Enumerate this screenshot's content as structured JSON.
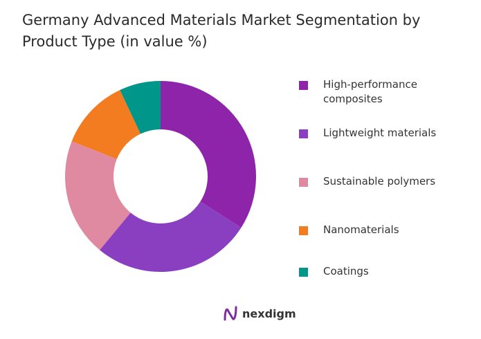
{
  "chart_data": {
    "type": "pie",
    "donut": true,
    "title": "Germany Advanced Materials Market Segmentation by Product Type (in value %)",
    "categories": [
      "High-performance composites",
      "Lightweight materials",
      "Sustainable polymers",
      "Nanomaterials",
      "Coatings"
    ],
    "values": [
      34,
      27,
      20,
      12,
      7
    ],
    "colors": [
      "#8E24AA",
      "#8A3FC0",
      "#E08AA2",
      "#F47C20",
      "#00968A"
    ],
    "legend": "right"
  },
  "brand": {
    "name": "nexdigm",
    "color": "#7B2D9E"
  }
}
